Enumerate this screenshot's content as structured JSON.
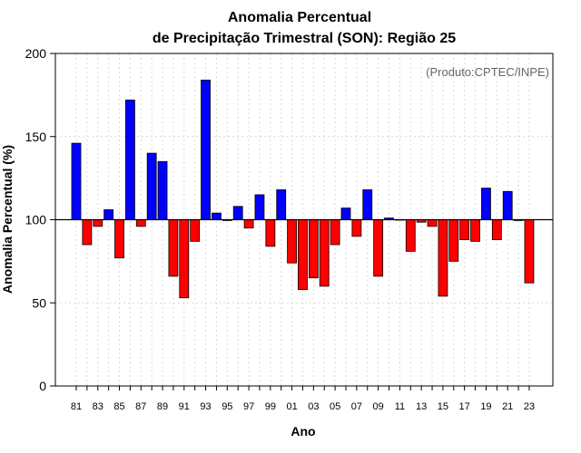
{
  "chart_data": {
    "type": "bar",
    "title_line1": "Anomalia Percentual",
    "title_line2": "de Precipitação Trimestral (SON): Região 25",
    "xlabel": "Ano",
    "ylabel": "Anomalia Percentual (%)",
    "credit": "(Produto:CPTEC/INPE)",
    "baseline": 100,
    "ylim": [
      0,
      200
    ],
    "yticks": [
      0,
      50,
      100,
      150,
      200
    ],
    "years": [
      "81",
      "82",
      "83",
      "84",
      "85",
      "86",
      "87",
      "88",
      "89",
      "90",
      "91",
      "92",
      "93",
      "94",
      "95",
      "96",
      "97",
      "98",
      "99",
      "00",
      "01",
      "02",
      "03",
      "04",
      "05",
      "06",
      "07",
      "08",
      "09",
      "10",
      "11",
      "12",
      "13",
      "14",
      "15",
      "16",
      "17",
      "18",
      "19",
      "20",
      "21",
      "22",
      "23"
    ],
    "xtick_labels": [
      "81",
      "83",
      "85",
      "87",
      "89",
      "91",
      "93",
      "95",
      "97",
      "99",
      "01",
      "03",
      "05",
      "07",
      "09",
      "11",
      "13",
      "15",
      "17",
      "19",
      "21",
      "23"
    ],
    "values": [
      146,
      85,
      96,
      106,
      77,
      172,
      96,
      140,
      135,
      66,
      53,
      87,
      184,
      104,
      99.5,
      108,
      95,
      115,
      84,
      118,
      74,
      58,
      65,
      60,
      85,
      107,
      90,
      118,
      66,
      101,
      100,
      81,
      98.5,
      96,
      54,
      75,
      88,
      87,
      119,
      88,
      117,
      99.5,
      62
    ],
    "colors": {
      "above": "#0000ff",
      "below": "#ff0000",
      "axis": "#000000",
      "grid": "#d9d9d9"
    }
  }
}
